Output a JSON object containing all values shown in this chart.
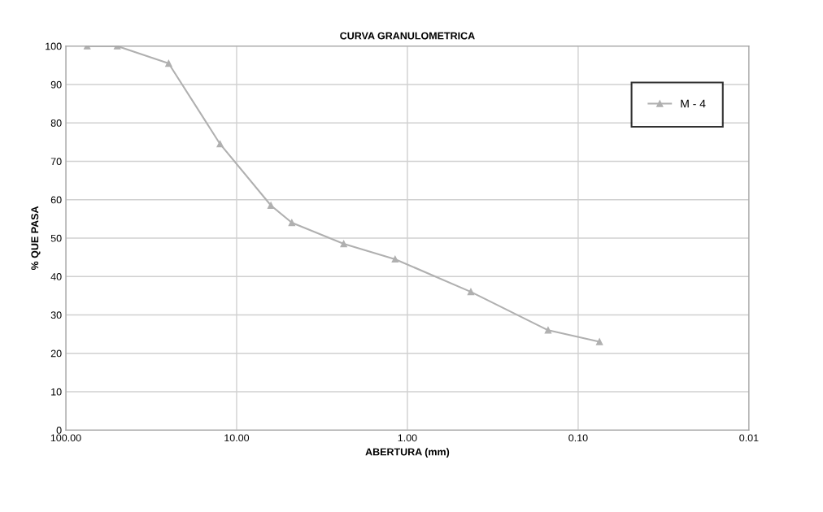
{
  "chart_data": {
    "type": "line",
    "title": "CURVA GRANULOMETRICA",
    "xlabel": "ABERTURA (mm)",
    "ylabel": "% QUE PASA",
    "log": "x",
    "xlim": [
      100,
      0.01
    ],
    "xticks": [
      {
        "value": 100,
        "label": "100.00"
      },
      {
        "value": 10,
        "label": "10.00"
      },
      {
        "value": 1,
        "label": "1.00"
      },
      {
        "value": 0.1,
        "label": "0.10"
      },
      {
        "value": 0.01,
        "label": "0.01"
      }
    ],
    "ylim": [
      0,
      100
    ],
    "yticks": [
      0,
      10,
      20,
      30,
      40,
      50,
      60,
      70,
      80,
      90,
      100
    ],
    "grid": true,
    "legend": "top right",
    "marker": "triangle",
    "line_style": "solid",
    "series": [
      {
        "name": "M - 4",
        "color": "#b0b0b0",
        "x": [
          75,
          50,
          25,
          12.5,
          6.3,
          4.75,
          2.36,
          1.18,
          0.425,
          0.15,
          0.075
        ],
        "values": [
          100,
          100,
          95.5,
          74.5,
          58.5,
          54,
          48.5,
          44.5,
          36,
          26,
          23
        ]
      }
    ]
  }
}
